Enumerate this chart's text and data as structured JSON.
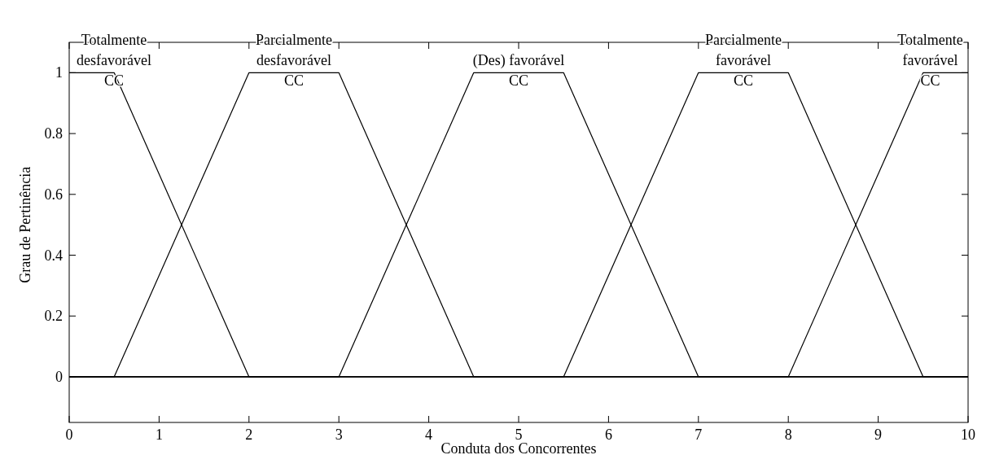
{
  "chart_data": {
    "type": "line",
    "xlabel": "Conduta dos Concorrentes",
    "ylabel": "Grau de Pertinência",
    "xlim": [
      0,
      10
    ],
    "ylim": [
      -0.15,
      1.1
    ],
    "xticks": [
      0,
      1,
      2,
      3,
      4,
      5,
      6,
      7,
      8,
      9,
      10
    ],
    "yticks": [
      0,
      0.2,
      0.4,
      0.6,
      0.8,
      1
    ],
    "grid": false,
    "legend": "top",
    "marker": "none",
    "line_style": "solid",
    "series": [
      {
        "name": "Totalmente\ndesfavorável\nCC",
        "color": "#000000",
        "x": [
          0,
          0.5,
          2,
          10
        ],
        "values": [
          1,
          1,
          0,
          0
        ]
      },
      {
        "name": "Parcialmente\ndesfavorável\nCC",
        "color": "#000000",
        "x": [
          0,
          0.5,
          2,
          3,
          4.5,
          10
        ],
        "values": [
          0,
          0,
          1,
          1,
          0,
          0
        ]
      },
      {
        "name": "(Des) favorável\nCC",
        "color": "#000000",
        "x": [
          0,
          3,
          4.5,
          5.5,
          7,
          10
        ],
        "values": [
          0,
          0,
          1,
          1,
          0,
          0
        ]
      },
      {
        "name": "Parcialmente\nfavorável\nCC",
        "color": "#000000",
        "x": [
          0,
          5.5,
          7,
          8,
          9.5,
          10
        ],
        "values": [
          0,
          0,
          1,
          1,
          0,
          0
        ]
      },
      {
        "name": "Totalmente\nfavorável\nCC",
        "color": "#000000",
        "x": [
          0,
          8,
          9.5,
          10
        ],
        "values": [
          0,
          0,
          1,
          1
        ]
      }
    ]
  }
}
